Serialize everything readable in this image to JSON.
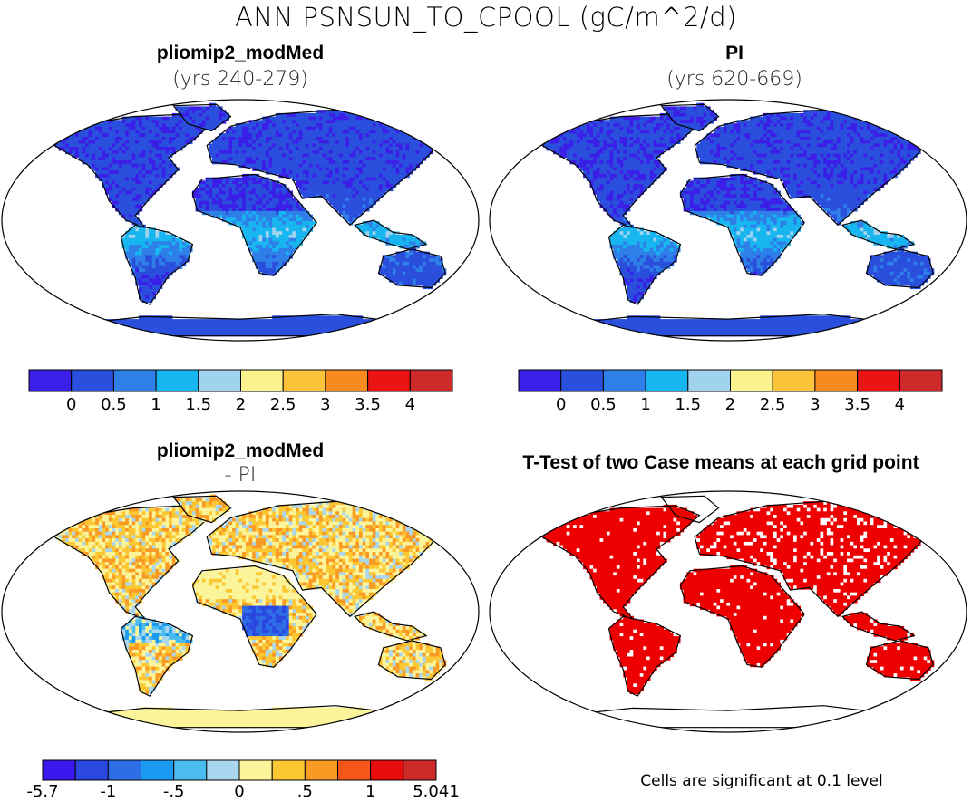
{
  "title": "ANN PSNSUN_TO_CPOOL (gC/m^2/d)",
  "panels": {
    "top_left": {
      "title": "pliomip2_modMed",
      "subtitle": "(yrs 240-279)"
    },
    "top_right": {
      "title": "PI",
      "subtitle": "(yrs 620-669)"
    },
    "bottom_left": {
      "title": "pliomip2_modMed",
      "subtitle": "- PI"
    },
    "bottom_right": {
      "title": "T-Test of two Case means at each grid point",
      "footnote": "Cells are significant at 0.1 level"
    }
  },
  "colorbar_abs": {
    "colors": [
      "#3b1fe8",
      "#2a4fdd",
      "#2f7fe8",
      "#18b6f0",
      "#9fd3ee",
      "#fbf28d",
      "#fbc23a",
      "#f98a1e",
      "#ea1414",
      "#cf2a2a"
    ],
    "tick_labels": [
      "0",
      "0.5",
      "1",
      "1.5",
      "2",
      "2.5",
      "3",
      "3.5",
      "4"
    ]
  },
  "colorbar_diff": {
    "colors": [
      "#3a18f0",
      "#2a48e0",
      "#2d6ee6",
      "#1a9af0",
      "#4bbcf0",
      "#aad6ef",
      "#fbf49a",
      "#fbc834",
      "#f99a24",
      "#f6561a",
      "#e80c0c",
      "#cf2a2a"
    ],
    "tick_labels": [
      "-5.7",
      "-1",
      "-.5",
      "0",
      ".5",
      "1",
      "5.041"
    ]
  },
  "map_colors": {
    "ocean": "#ffffff",
    "coast": "#000000",
    "significant": "#ee0000"
  }
}
